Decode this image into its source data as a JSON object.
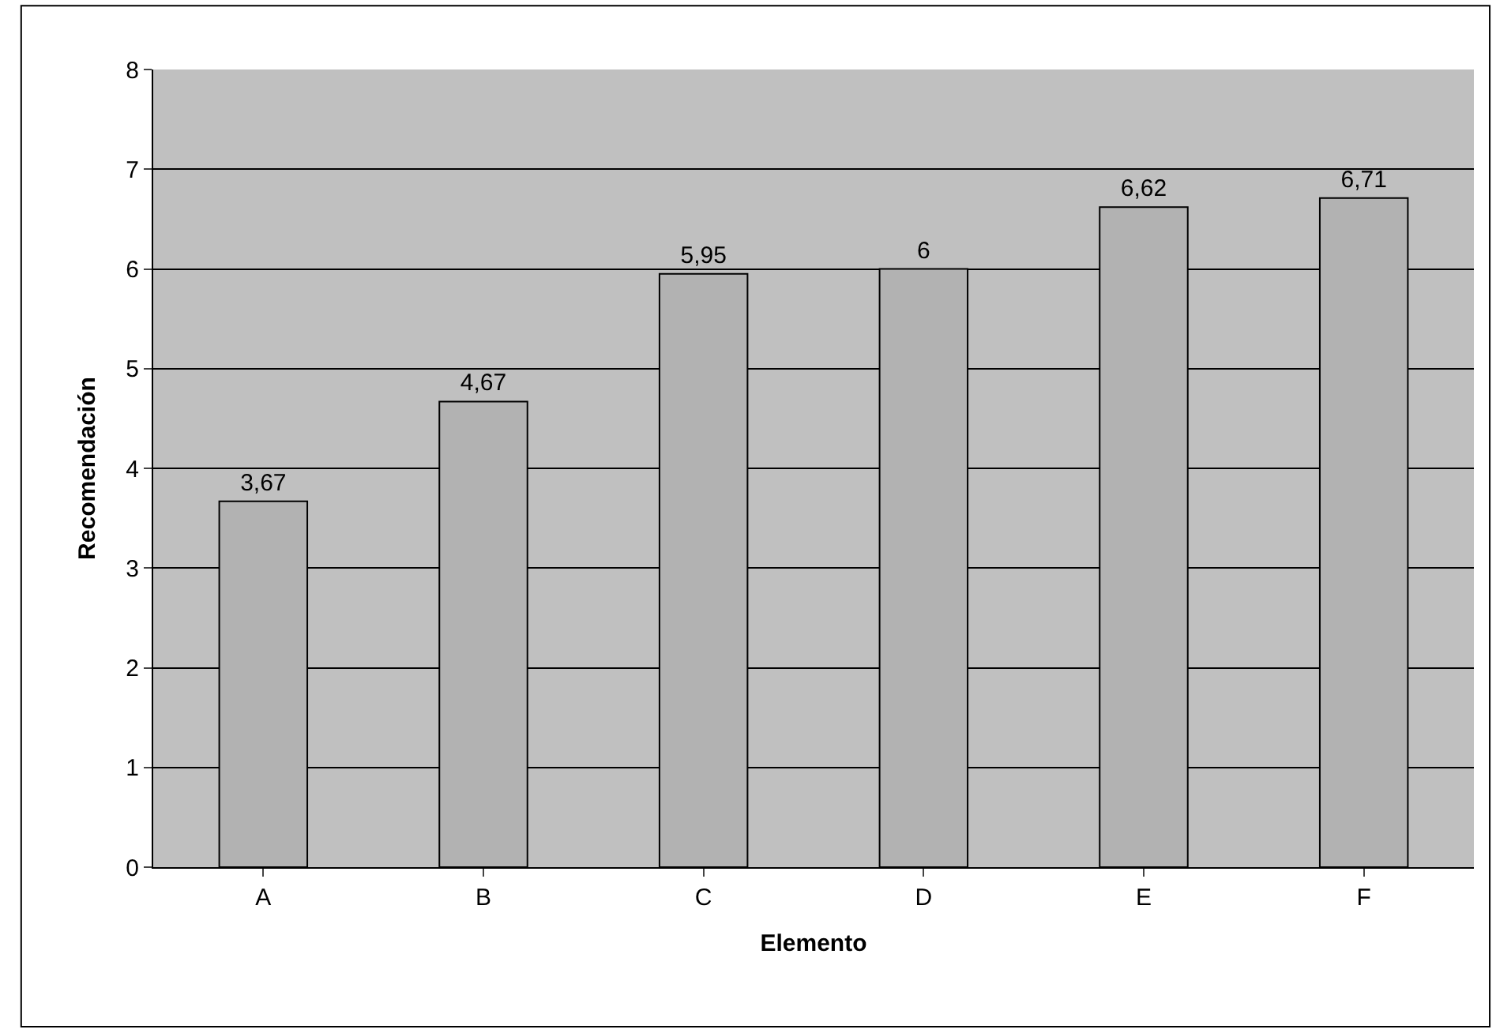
{
  "chart_data": {
    "type": "bar",
    "xlabel": "Elemento",
    "ylabel": "Recomendación",
    "categories": [
      "A",
      "B",
      "C",
      "D",
      "E",
      "F"
    ],
    "values": [
      3.67,
      4.67,
      5.95,
      6,
      6.62,
      6.71
    ],
    "value_labels": [
      "3,67",
      "4,67",
      "5,95",
      "6",
      "6,62",
      "6,71"
    ],
    "color": "#b2b2b2",
    "ylim": [
      0,
      8
    ],
    "yticks": [
      0,
      1,
      2,
      3,
      4,
      5,
      6,
      7,
      8
    ],
    "grid": "y"
  }
}
